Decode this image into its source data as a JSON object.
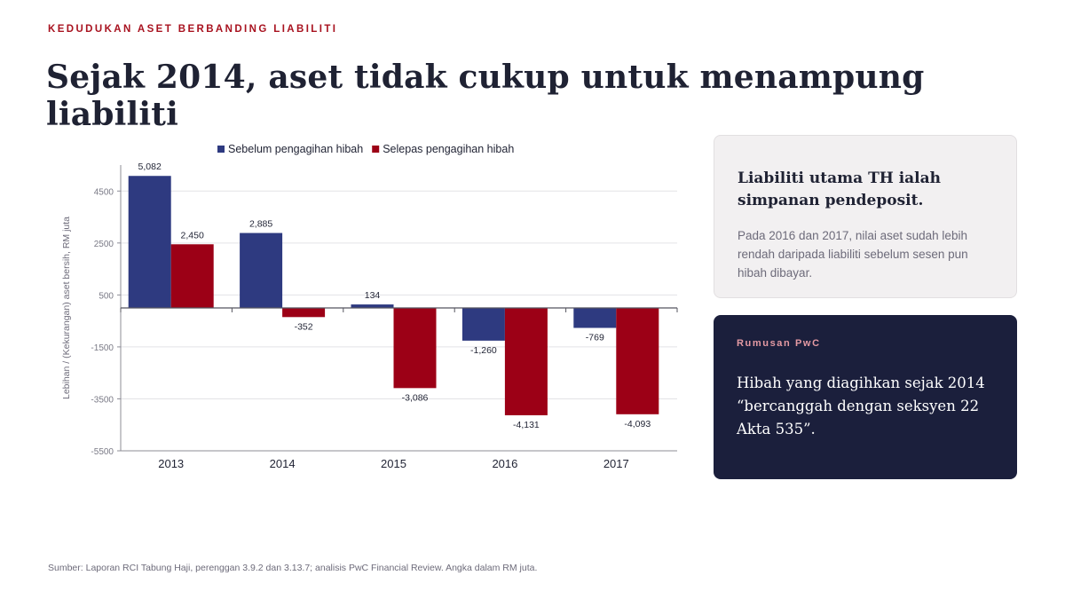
{
  "header": {
    "kicker": "KEDUDUKAN ASET BERBANDING LIABILITI",
    "title": "Sejak 2014, aset tidak cukup untuk menampung liabiliti"
  },
  "chart_data": {
    "type": "bar",
    "title": "",
    "xlabel": "",
    "ylabel": "Lebihan / (Kekurangan) aset bersih, RM juta",
    "categories": [
      "2013",
      "2014",
      "2015",
      "2016",
      "2017"
    ],
    "series": [
      {
        "name": "Sebelum pengagihan hibah",
        "color": "#2e3a80",
        "values": [
          5082,
          2885,
          134,
          -1260,
          -769
        ],
        "labels": [
          "5,082",
          "2,885",
          "134",
          "-1,260",
          "-769"
        ]
      },
      {
        "name": "Selepas pengagihan hibah",
        "color": "#9c0016",
        "values": [
          2450,
          -352,
          -3086,
          -4131,
          -4093
        ],
        "labels": [
          "2,450",
          "-352",
          "-3,086",
          "-4,131",
          "-4,093"
        ]
      }
    ],
    "yticks": [
      4500,
      2500,
      500,
      -1500,
      -3500,
      -5500
    ],
    "ylim": [
      -5500,
      5500
    ],
    "grid": true,
    "legend": "top"
  },
  "card_insight": {
    "title": "Liabiliti utama TH ialah simpanan pendeposit.",
    "body": "Pada 2016 dan 2017, nilai aset sudah lebih rendah daripada liabiliti sebelum sesen pun hibah dibayar."
  },
  "card_quote": {
    "label": "Rumusan PwC",
    "quote": "Hibah yang diagihkan sejak 2014 “bercanggah dengan seksyen 22 Akta 535”."
  },
  "source": "Sumber: Laporan RCI Tabung Haji, perenggan 3.9.2 dan 3.13.7; analisis PwC Financial Review. Angka dalam RM juta."
}
